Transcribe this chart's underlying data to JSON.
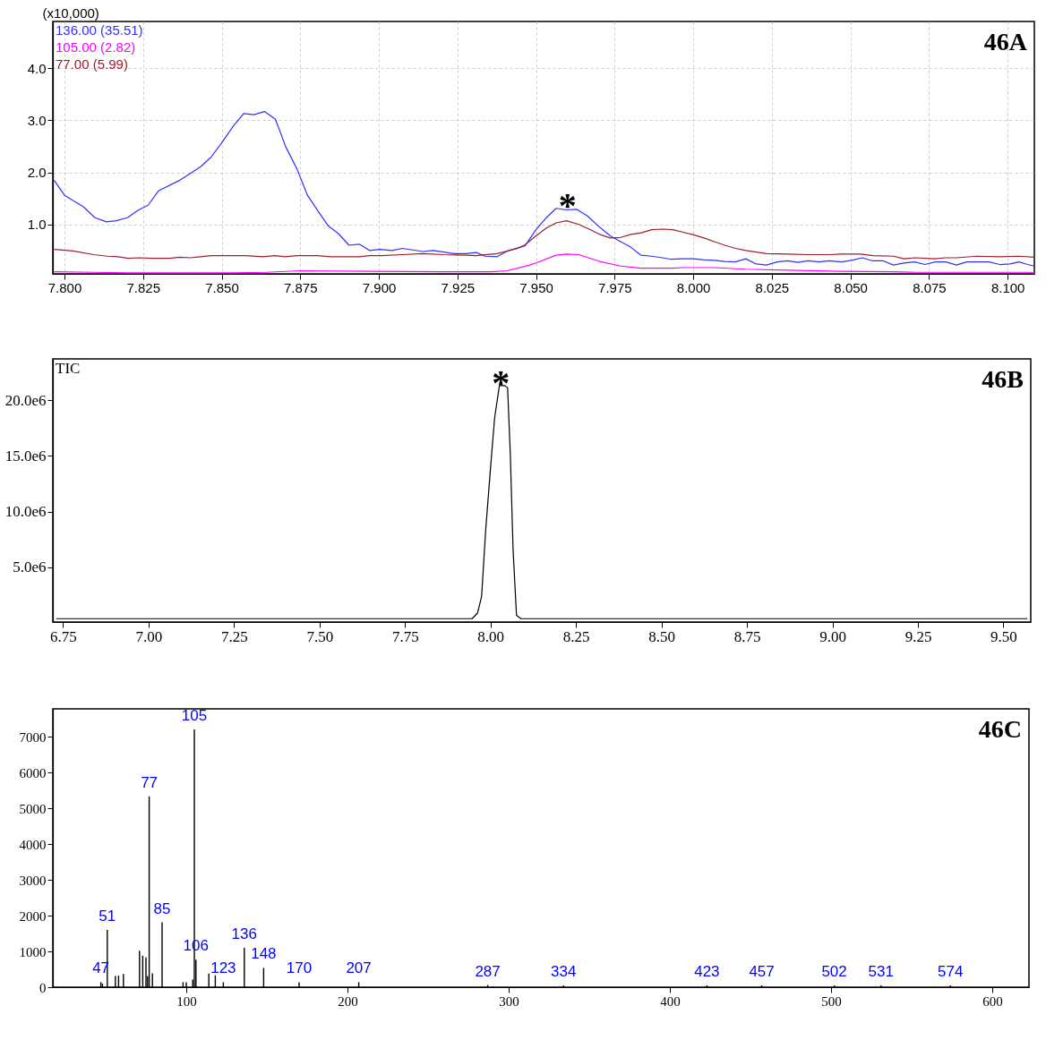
{
  "chart_data": [
    {
      "type": "line",
      "ylabel": "(x10,000)",
      "xlim": [
        7.7963,
        8.1085
      ],
      "ylim": [
        0.05,
        4.9
      ],
      "xticks": [
        {
          "value": 7.8,
          "label": "7.800"
        },
        7.825,
        {
          "value": 7.85,
          "label": "7.850"
        },
        7.875,
        {
          "value": 7.9,
          "label": "7.900"
        },
        7.925,
        {
          "value": 7.95,
          "label": "7.950"
        },
        7.975,
        {
          "value": 8,
          "label": "8.000"
        },
        8.025,
        {
          "value": 8.05,
          "label": "8.050"
        },
        8.075,
        {
          "value": 8.1,
          "label": "8.100"
        }
      ],
      "yticks": [
        {
          "value": 1,
          "label": "1.0"
        },
        {
          "value": 2,
          "label": "2.0"
        },
        {
          "value": 3,
          "label": "3.0"
        },
        {
          "value": 4,
          "label": "4.0"
        }
      ],
      "grid": true,
      "legend": "top left",
      "series": [
        {
          "name": "136.00 (35.51)",
          "color": "#3030ff",
          "x": [
            7.7967,
            7.8,
            7.806,
            7.8097,
            7.8134,
            7.8164,
            7.82,
            7.8236,
            7.8266,
            7.83,
            7.8367,
            7.8403,
            7.8433,
            7.8466,
            7.8499,
            7.8537,
            7.857,
            7.8603,
            7.8636,
            7.8671,
            7.8704,
            7.874,
            7.8773,
            7.8806,
            7.8838,
            7.8872,
            7.8905,
            7.8938,
            7.897,
            7.9003,
            7.9042,
            7.9075,
            7.914,
            7.9173,
            7.9206,
            7.9239,
            7.9277,
            7.931,
            7.9338,
            7.9376,
            7.9409,
            7.9465,
            7.95,
            7.9533,
            7.9564,
            7.9597,
            7.963,
            7.9664,
            7.97,
            7.9736,
            7.9769,
            7.9802,
            7.9833,
            7.9868,
            7.9902,
            7.9929,
            7.9968,
            8.0001,
            8.0034,
            8.0067,
            8.01,
            8.0134,
            8.0167,
            8.02,
            8.0233,
            8.0267,
            8.03,
            8.0333,
            8.0366,
            8.04,
            8.0433,
            8.0471,
            8.0504,
            8.0538,
            8.0571,
            8.0604,
            8.0637,
            8.067,
            8.0704,
            8.0737,
            8.077,
            8.0803,
            8.0837,
            8.087,
            8.0903,
            8.0941,
            8.0975,
            8.1008,
            8.1036,
            8.1063,
            8.1085
          ],
          "values": [
            1.85,
            1.56,
            1.34,
            1.13,
            1.05,
            1.07,
            1.13,
            1.28,
            1.37,
            1.65,
            1.85,
            1.99,
            2.11,
            2.29,
            2.56,
            2.89,
            3.13,
            3.11,
            3.17,
            3.02,
            2.49,
            2.06,
            1.56,
            1.26,
            0.98,
            0.82,
            0.6,
            0.62,
            0.5,
            0.52,
            0.5,
            0.54,
            0.48,
            0.5,
            0.47,
            0.44,
            0.44,
            0.46,
            0.39,
            0.38,
            0.49,
            0.59,
            0.9,
            1.13,
            1.31,
            1.28,
            1.29,
            1.16,
            0.96,
            0.78,
            0.67,
            0.56,
            0.41,
            0.39,
            0.36,
            0.33,
            0.34,
            0.34,
            0.32,
            0.31,
            0.29,
            0.28,
            0.34,
            0.24,
            0.22,
            0.28,
            0.3,
            0.27,
            0.3,
            0.28,
            0.3,
            0.28,
            0.31,
            0.36,
            0.3,
            0.3,
            0.22,
            0.26,
            0.28,
            0.23,
            0.28,
            0.28,
            0.22,
            0.28,
            0.28,
            0.28,
            0.23,
            0.24,
            0.28,
            0.23,
            0.2
          ]
        },
        {
          "name": "105.00 (2.82)",
          "color": "#ff00ff",
          "x": [
            7.7967,
            7.8093,
            7.8203,
            7.8532,
            7.8641,
            7.8751,
            7.897,
            7.9193,
            7.9357,
            7.9409,
            7.948,
            7.95,
            7.9564,
            7.9597,
            7.9636,
            7.9702,
            7.9769,
            7.9833,
            7.9935,
            7.9968,
            8.0067,
            8.0167,
            8.03,
            8.0466,
            8.0632,
            8.0704,
            8.0964,
            8.1074,
            8.1085
          ],
          "values": [
            0.09,
            0.08,
            0.07,
            0.07,
            0.08,
            0.11,
            0.1,
            0.09,
            0.09,
            0.11,
            0.22,
            0.26,
            0.41,
            0.43,
            0.42,
            0.29,
            0.2,
            0.16,
            0.16,
            0.17,
            0.17,
            0.14,
            0.12,
            0.1,
            0.09,
            0.08,
            0.08,
            0.08,
            0.06
          ]
        },
        {
          "name": "77.00 (5.99)",
          "color": "#a01c2c",
          "x": [
            7.7967,
            7.8027,
            7.8093,
            7.8137,
            7.817,
            7.8203,
            7.8236,
            7.828,
            7.8334,
            7.8367,
            7.84,
            7.8433,
            7.8466,
            7.8532,
            7.8576,
            7.863,
            7.8669,
            7.8702,
            7.874,
            7.8806,
            7.8845,
            7.8905,
            7.8938,
            7.897,
            7.9009,
            7.9075,
            7.914,
            7.9206,
            7.9277,
            7.931,
            7.9376,
            7.9442,
            7.9465,
            7.95,
            7.9533,
            7.9564,
            7.9597,
            7.9636,
            7.9669,
            7.9702,
            7.9736,
            7.9769,
            7.9802,
            7.9835,
            7.9868,
            7.9902,
            7.9935,
            7.9968,
            8.0001,
            8.0034,
            8.0067,
            8.01,
            8.0134,
            8.0167,
            8.02,
            8.0233,
            8.03,
            8.0366,
            8.0433,
            8.0471,
            8.0532,
            8.0571,
            8.0637,
            8.067,
            8.0704,
            8.077,
            8.0803,
            8.0837,
            8.0903,
            8.0975,
            8.1036,
            8.1085
          ],
          "values": [
            0.52,
            0.49,
            0.42,
            0.39,
            0.38,
            0.35,
            0.36,
            0.35,
            0.35,
            0.37,
            0.36,
            0.38,
            0.4,
            0.4,
            0.4,
            0.38,
            0.4,
            0.38,
            0.4,
            0.4,
            0.38,
            0.38,
            0.38,
            0.4,
            0.4,
            0.42,
            0.44,
            0.42,
            0.41,
            0.4,
            0.44,
            0.54,
            0.61,
            0.78,
            0.93,
            1.03,
            1.07,
            1.0,
            0.91,
            0.81,
            0.74,
            0.75,
            0.81,
            0.84,
            0.9,
            0.91,
            0.9,
            0.85,
            0.8,
            0.74,
            0.67,
            0.6,
            0.54,
            0.5,
            0.47,
            0.44,
            0.43,
            0.42,
            0.42,
            0.43,
            0.43,
            0.4,
            0.39,
            0.34,
            0.36,
            0.34,
            0.36,
            0.36,
            0.39,
            0.38,
            0.39,
            0.37
          ]
        }
      ],
      "annotations": [
        "46A",
        {
          "text": "*",
          "x": 7.96,
          "y": 1.3
        }
      ]
    },
    {
      "type": "line",
      "xlim": [
        6.72,
        9.58
      ],
      "ylim": [
        100000,
        23700000
      ],
      "xticks": [
        6.75,
        {
          "value": 7,
          "label": "7.00"
        },
        {
          "value": 7.25,
          "label": "7.25"
        },
        {
          "value": 7.5,
          "label": "7.50"
        },
        7.75,
        {
          "value": 8,
          "label": "8.00"
        },
        8.25,
        {
          "value": 8.5,
          "label": "8.50"
        },
        8.75,
        {
          "value": 9,
          "label": "9.00"
        },
        9.25,
        {
          "value": 9.5,
          "label": "9.50"
        }
      ],
      "yticks": [
        {
          "value": 5000000,
          "label": "5.0e6"
        },
        {
          "value": 10000000,
          "label": "10.0e6"
        },
        {
          "value": 15000000,
          "label": "15.0e6"
        },
        {
          "value": 20000000,
          "label": "20.0e6"
        }
      ],
      "legend": "top left",
      "series": [
        {
          "name": "TIC",
          "color": "#000000",
          "x": [
            6.73,
            7.946,
            7.962,
            7.974,
            7.986,
            8.0,
            8.012,
            8.026,
            8.042,
            8.05,
            8.058,
            8.066,
            8.076,
            8.089,
            9.57
          ],
          "values": [
            400000,
            400000,
            900000,
            2400000,
            8400000,
            13900000,
            18400000,
            21300000,
            21300000,
            21100000,
            15100000,
            6600000,
            700000,
            400000,
            400000
          ]
        }
      ],
      "annotations": [
        "46B",
        {
          "text": "*",
          "x": 8.03,
          "y": 21300000
        }
      ]
    },
    {
      "type": "bar",
      "xlim": [
        20,
        620
      ],
      "ylim": [
        0,
        7775
      ],
      "xticks": [
        100,
        200,
        300,
        400,
        500,
        600
      ],
      "yticks": [
        0,
        1000,
        2000,
        3000,
        4000,
        5000,
        6000,
        7000
      ],
      "color": "#000000",
      "x": [
        47,
        48,
        51,
        56,
        58,
        61,
        71,
        73,
        75,
        76,
        77,
        79,
        85,
        98,
        100,
        104,
        105,
        106,
        114,
        118,
        123,
        136,
        148,
        170,
        207,
        287,
        334,
        423,
        457,
        502,
        531,
        574
      ],
      "values": [
        140,
        100,
        1600,
        310,
        320,
        370,
        1020,
        880,
        830,
        310,
        5330,
        390,
        1810,
        140,
        140,
        210,
        7200,
        770,
        380,
        330,
        140,
        1100,
        540,
        140,
        140,
        60,
        50,
        50,
        50,
        50,
        50,
        50
      ],
      "annotations": [
        "46C",
        {
          "text": "47",
          "x": 47,
          "y": 140
        },
        {
          "text": "51",
          "x": 51,
          "y": 1600
        },
        {
          "text": "77",
          "x": 77,
          "y": 5330
        },
        {
          "text": "85",
          "x": 85,
          "y": 1810
        },
        {
          "text": "105",
          "x": 105,
          "y": 7200
        },
        {
          "text": "106",
          "x": 106,
          "y": 770
        },
        {
          "text": "123",
          "x": 123,
          "y": 140
        },
        {
          "text": "136",
          "x": 136,
          "y": 1100
        },
        {
          "text": "148",
          "x": 148,
          "y": 540
        },
        {
          "text": "170",
          "x": 170,
          "y": 140
        },
        {
          "text": "207",
          "x": 207,
          "y": 140
        },
        {
          "text": "287",
          "x": 287,
          "y": 60
        },
        {
          "text": "334",
          "x": 334,
          "y": 50
        },
        {
          "text": "423",
          "x": 423,
          "y": 50
        },
        {
          "text": "457",
          "x": 457,
          "y": 50
        },
        {
          "text": "502",
          "x": 502,
          "y": 50
        },
        {
          "text": "531",
          "x": 531,
          "y": 50
        },
        {
          "text": "574",
          "x": 574,
          "y": 50
        }
      ]
    }
  ]
}
